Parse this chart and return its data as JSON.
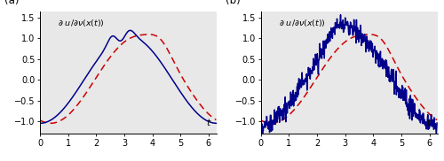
{
  "xlim": [
    0,
    6.283
  ],
  "ylim": [
    -1.3,
    1.65
  ],
  "yticks": [
    -1,
    -0.5,
    0,
    0.5,
    1,
    1.5
  ],
  "xticks": [
    0,
    1,
    2,
    3,
    4,
    5,
    6
  ],
  "blue_color": "#00008B",
  "red_color": "#CC0000",
  "bg_color": "#e8e8e8",
  "noise_std": 0.12,
  "n_points_a": 400,
  "n_points_b": 500,
  "seed": 15,
  "figsize": [
    5.0,
    1.82
  ],
  "dpi": 100
}
